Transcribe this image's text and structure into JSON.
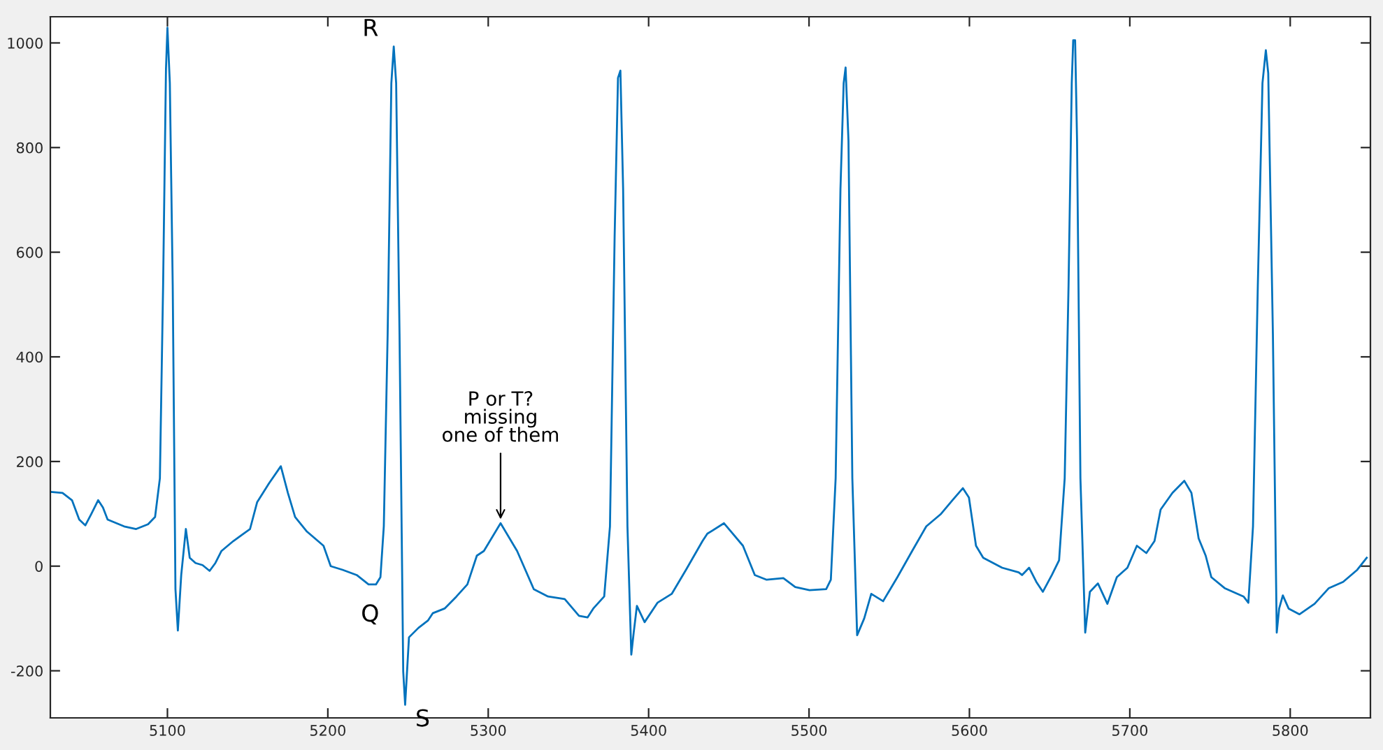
{
  "chart_data": {
    "type": "line",
    "x": [
      5027.2,
      5034.6,
      5040.5,
      5045,
      5048.8,
      5052.4,
      5056.8,
      5059.8,
      5062.7,
      5073,
      5080.5,
      5087.9,
      5092.3,
      5095.3,
      5097.3,
      5099.1,
      5100,
      5101.5,
      5103.3,
      5105,
      5106.5,
      5108.6,
      5111.5,
      5113.9,
      5117.5,
      5121.9,
      5126.3,
      5129.9,
      5133.7,
      5141.1,
      5151.5,
      5155.9,
      5163.3,
      5170.7,
      5175.1,
      5179.6,
      5187,
      5197.3,
      5201.8,
      5209.2,
      5218,
      5225.4,
      5230,
      5232.8,
      5234.9,
      5237.3,
      5239.6,
      5241.1,
      5242.6,
      5244.7,
      5247,
      5248.2,
      5250.6,
      5256.5,
      5262.4,
      5265.4,
      5272.8,
      5280.2,
      5287,
      5292.9,
      5297.3,
      5307.7,
      5318,
      5328.4,
      5337.3,
      5347.7,
      5356.6,
      5361.9,
      5365.5,
      5372.3,
      5375.9,
      5378.8,
      5380.9,
      5382.4,
      5384.1,
      5386.8,
      5389.2,
      5390.7,
      5392.7,
      5397.5,
      5405.5,
      5414.4,
      5423.3,
      5433.6,
      5436.6,
      5447,
      5458.8,
      5466.2,
      5473.6,
      5484,
      5491.4,
      5500.3,
      5510.7,
      5513.6,
      5516.6,
      5519.6,
      5521.6,
      5522.8,
      5524.6,
      5527,
      5530,
      5534.4,
      5538.8,
      5546.2,
      5555.1,
      5564.3,
      5573.1,
      5582,
      5589.4,
      5595.9,
      5599.7,
      5604.1,
      5608.6,
      5620.4,
      5630.7,
      5632.8,
      5637.2,
      5641.7,
      5645.8,
      5651.4,
      5655.9,
      5659.4,
      5661.8,
      5663.8,
      5664.7,
      5665.9,
      5667.1,
      5669.2,
      5672.2,
      5675.1,
      5680.1,
      5686,
      5691.9,
      5698.5,
      5704.4,
      5710.3,
      5715.4,
      5719.2,
      5726.6,
      5734,
      5738.4,
      5742.9,
      5747.3,
      5750.8,
      5759.1,
      5770.9,
      5773.9,
      5776.8,
      5779.8,
      5782.7,
      5784.8,
      5786.3,
      5789.2,
      5791.6,
      5793.1,
      5795.4,
      5799,
      5805.8,
      5815.2,
      5824.1,
      5833,
      5841.8,
      5847.7
    ],
    "series": [
      {
        "color": "#0072bd",
        "values": [
          142,
          140,
          126,
          89,
          78,
          99,
          126,
          112,
          89,
          76,
          71,
          80,
          94,
          168,
          536,
          951,
          1029,
          923,
          536,
          -44,
          -123,
          -17,
          71,
          16,
          6,
          2,
          -9,
          6,
          29,
          48,
          71,
          122,
          158,
          191,
          140,
          94,
          66,
          39,
          0,
          -7,
          -17,
          -35,
          -35,
          -21,
          76,
          444,
          923,
          993,
          923,
          444,
          -201,
          -265,
          -136,
          -118,
          -104,
          -90,
          -81,
          -58,
          -35,
          20,
          29,
          82,
          29,
          -44,
          -58,
          -63,
          -95,
          -98,
          -81,
          -58,
          76,
          629,
          933,
          947,
          721,
          76,
          -169,
          -127,
          -76,
          -107,
          -70,
          -53,
          -7,
          48,
          62,
          82,
          39,
          -17,
          -26,
          -23,
          -40,
          -46,
          -44,
          -26,
          168,
          721,
          923,
          953,
          813,
          168,
          -132,
          -100,
          -53,
          -67,
          -21,
          29,
          76,
          99,
          126,
          149,
          131,
          39,
          16,
          -3,
          -12,
          -17,
          -3,
          -30,
          -49,
          -17,
          11,
          168,
          536,
          923,
          1005,
          1005,
          813,
          168,
          -127,
          -49,
          -33,
          -72,
          -21,
          -3,
          39,
          25,
          48,
          108,
          140,
          163,
          140,
          53,
          20,
          -21,
          -42,
          -58,
          -70,
          76,
          536,
          923,
          986,
          942,
          444,
          -127,
          -81,
          -56,
          -81,
          -92,
          -72,
          -42,
          -30,
          -7,
          16
        ]
      }
    ],
    "xlim": [
      5027,
      5850
    ],
    "ylim": [
      -290,
      1050
    ],
    "xticks": [
      5100,
      5200,
      5300,
      5400,
      5500,
      5600,
      5700,
      5800
    ],
    "yticks": [
      -200,
      0,
      200,
      400,
      600,
      800,
      1000
    ],
    "grid": false,
    "legend": false,
    "annotations": [
      {
        "text": "R",
        "x": 5241.1,
        "y": 993
      },
      {
        "text": "Q",
        "x": 5230,
        "y": -35
      },
      {
        "text": "S",
        "x": 5248.2,
        "y": -265
      },
      {
        "text": "P or T?\nmissing\none of them",
        "x": 5307.7,
        "y": 82
      }
    ]
  }
}
